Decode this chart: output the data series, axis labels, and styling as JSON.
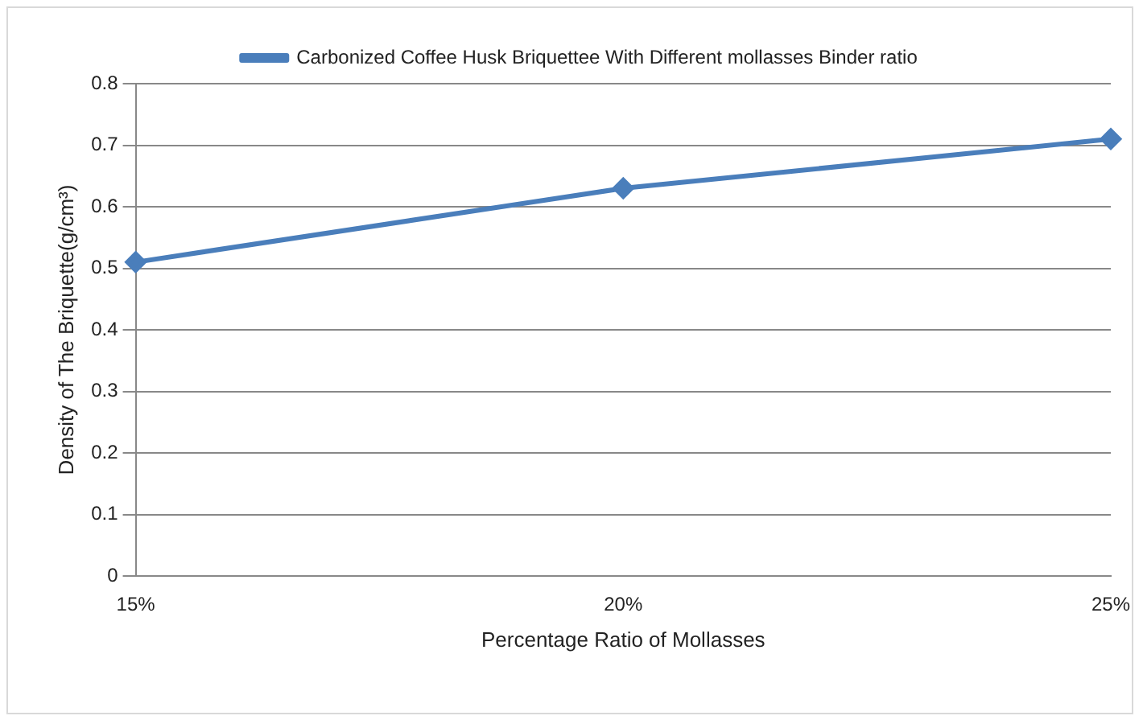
{
  "chart_data": {
    "type": "line",
    "xlabel": "Percentage Ratio of Mollasses",
    "ylabel": "Density of The Briquette(g/cm³)",
    "categories": [
      "15%",
      "20%",
      "25%"
    ],
    "series": [
      {
        "name": "Carbonized Coffee Husk Briquettee With Different mollasses Binder ratio",
        "color": "#4a7ebb",
        "values": [
          0.51,
          0.63,
          0.71
        ]
      }
    ],
    "ylim": [
      0,
      0.8
    ],
    "yticks": [
      0,
      0.1,
      0.2,
      0.3,
      0.4,
      0.5,
      0.6,
      0.7,
      0.8
    ],
    "grid": "y",
    "legend": "top",
    "marker": "diamond",
    "line_style": "solid"
  }
}
